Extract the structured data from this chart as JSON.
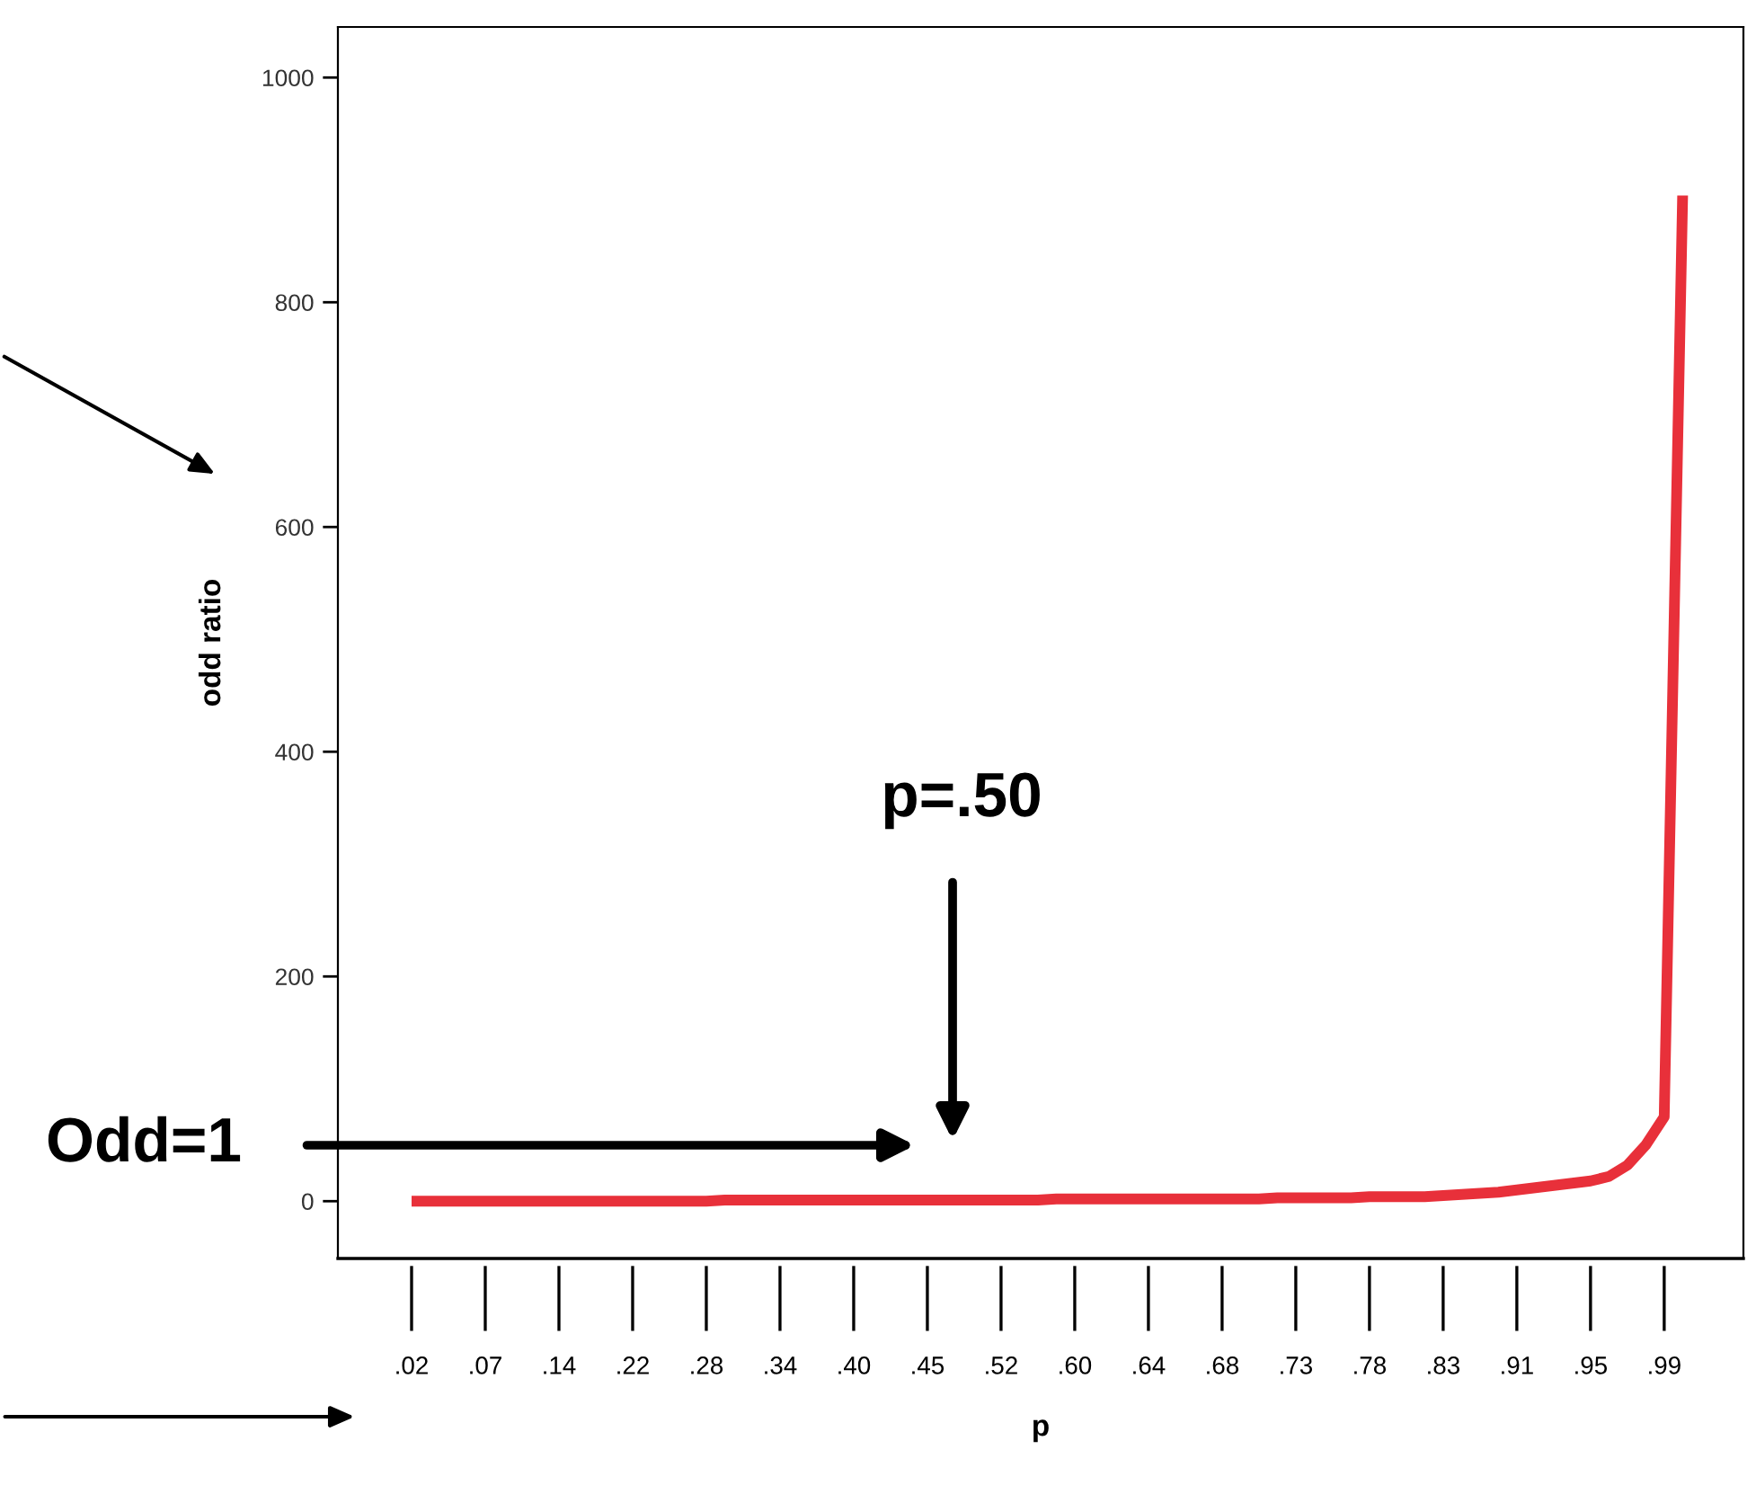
{
  "chart_data": {
    "type": "line",
    "xlabel": "p",
    "ylabel": "odd ratio",
    "categories": [
      ".02",
      null,
      null,
      null,
      ".07",
      null,
      null,
      null,
      ".14",
      null,
      null,
      null,
      ".22",
      null,
      null,
      null,
      ".28",
      null,
      null,
      null,
      ".34",
      null,
      null,
      null,
      ".40",
      null,
      null,
      null,
      ".45",
      null,
      null,
      null,
      ".52",
      null,
      null,
      null,
      ".60",
      null,
      null,
      null,
      ".64",
      null,
      null,
      null,
      ".68",
      null,
      null,
      null,
      ".73",
      null,
      null,
      null,
      ".78",
      null,
      null,
      null,
      ".83",
      null,
      null,
      null,
      ".91",
      null,
      null,
      null,
      ".95",
      null,
      null,
      null,
      ".99",
      null
    ],
    "series": [
      {
        "color": "#e8303a",
        "values": [
          0,
          0,
          0,
          0,
          0,
          0,
          0,
          0,
          0,
          0,
          0,
          0,
          0,
          0,
          0,
          0,
          0,
          1,
          1,
          1,
          1,
          1,
          1,
          1,
          1,
          1,
          1,
          1,
          1,
          1,
          1,
          1,
          1,
          1,
          1,
          2,
          2,
          2,
          2,
          2,
          2,
          2,
          2,
          2,
          2,
          2,
          2,
          3,
          3,
          3,
          3,
          3,
          4,
          4,
          4,
          4,
          5,
          6,
          7,
          8,
          10,
          12,
          14,
          16,
          18,
          22,
          32,
          50,
          75,
          895
        ]
      }
    ],
    "ylim": [
      -51,
      1045
    ],
    "yticks": [
      0,
      200,
      400,
      600,
      800,
      1000
    ],
    "grid": false,
    "legend": false,
    "marker": "none",
    "line_style": "solid",
    "annotations": [
      "p=.50",
      "Odd=1"
    ]
  }
}
